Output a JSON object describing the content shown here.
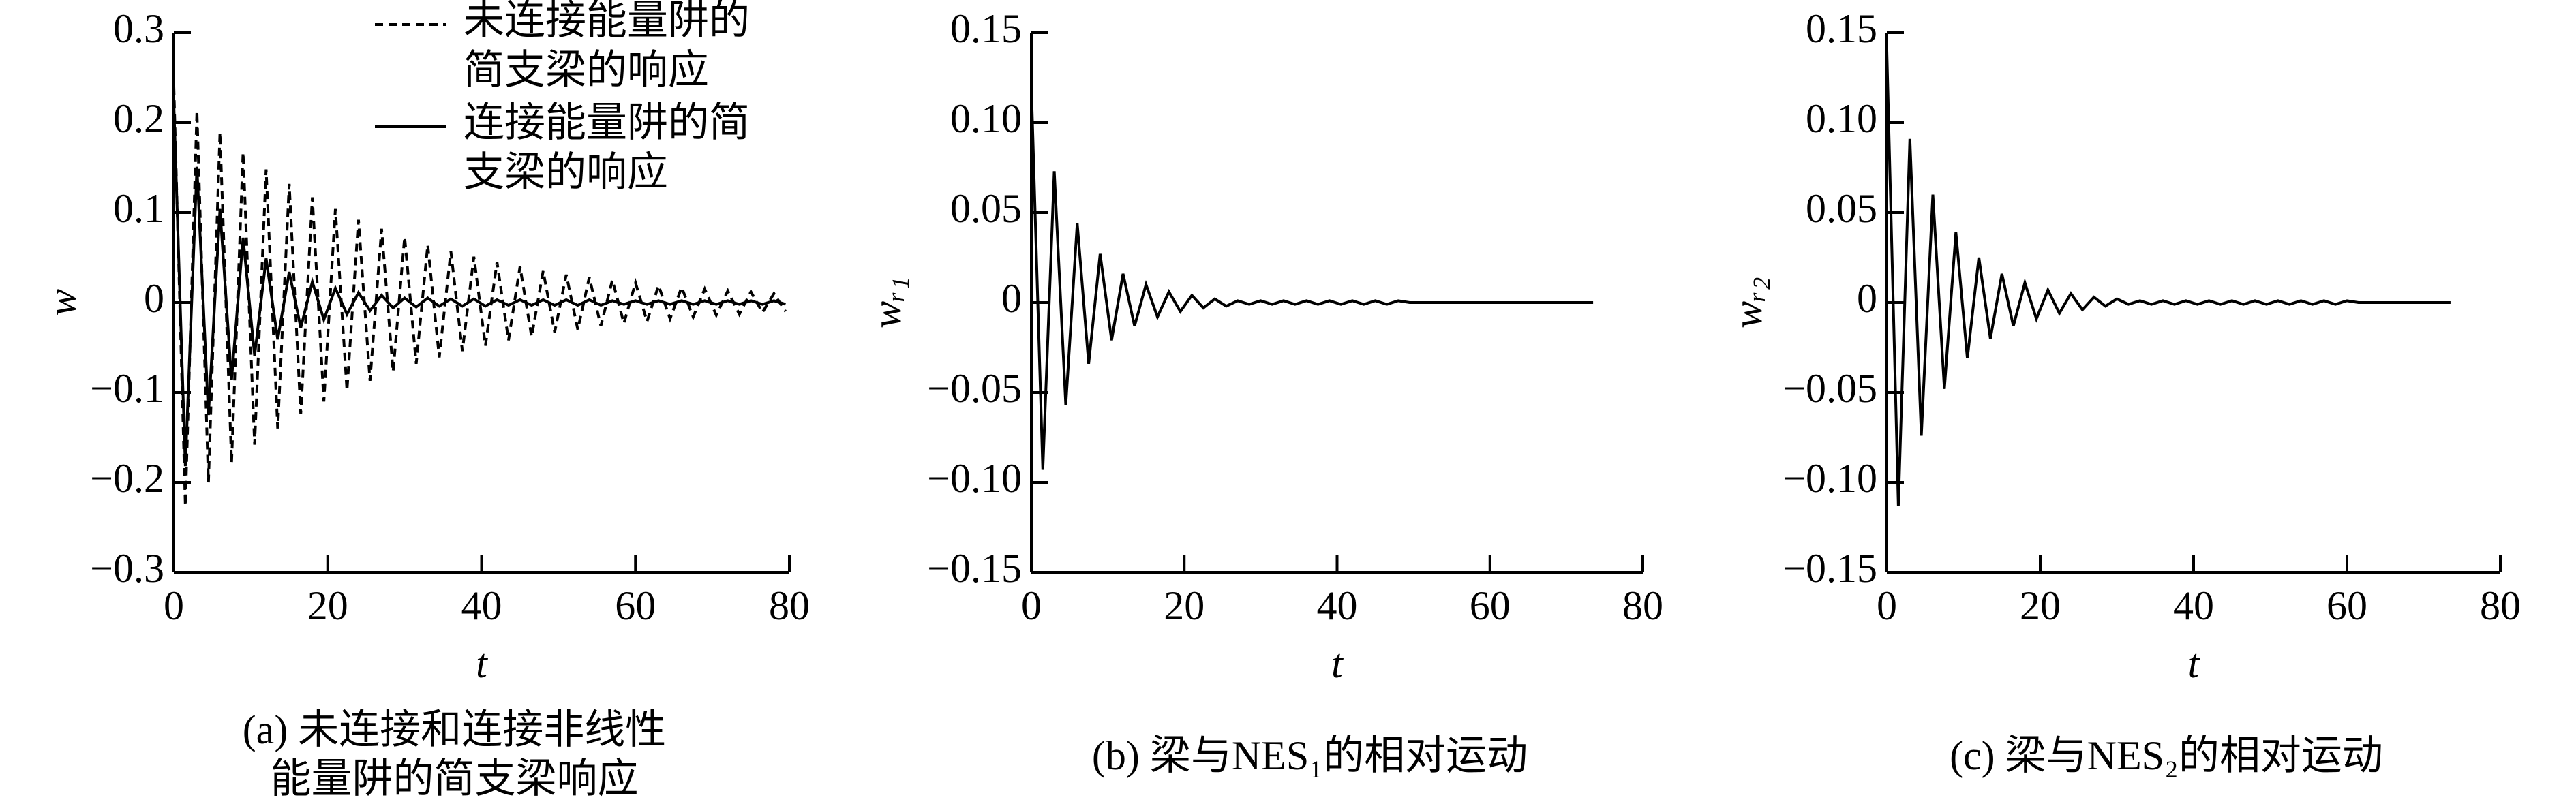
{
  "chart_data": [
    {
      "type": "line",
      "x_label": "t",
      "y_label": "w",
      "caption": [
        "(a) 未连接和连接非线性",
        "能量阱的简支梁响应"
      ],
      "legend": "upper right",
      "x": [
        0,
        1.5,
        3,
        4.5,
        6,
        7.5,
        9,
        10.5,
        12,
        13.5,
        15,
        16.5,
        18,
        19.5,
        21,
        22.5,
        24,
        25.5,
        27,
        28.5,
        30,
        31.5,
        33,
        34.5,
        36,
        37.5,
        39,
        40.5,
        42,
        43.5,
        45,
        46.5,
        48,
        49.5,
        51,
        52.5,
        54,
        55.5,
        57,
        58.5,
        60,
        61.5,
        63,
        64.5,
        66,
        67.5,
        69,
        70.5,
        72,
        73.5,
        75,
        76.5,
        78,
        79.5
      ],
      "series": [
        {
          "name": "未连接能量阱的简支梁的响应",
          "color": "#000000",
          "line_style": "dashed",
          "values": [
            0.24,
            -0.226,
            0.213,
            -0.2,
            0.189,
            -0.178,
            0.167,
            -0.158,
            0.148,
            -0.14,
            0.132,
            -0.124,
            0.117,
            -0.11,
            0.104,
            -0.098,
            0.092,
            -0.087,
            0.082,
            -0.077,
            0.073,
            -0.068,
            0.064,
            -0.061,
            0.057,
            -0.054,
            0.051,
            -0.048,
            0.045,
            -0.042,
            0.04,
            -0.038,
            0.035,
            -0.033,
            0.031,
            -0.03,
            0.028,
            -0.026,
            0.025,
            -0.023,
            0.022,
            -0.021,
            0.019,
            -0.018,
            0.017,
            -0.016,
            0.015,
            -0.014,
            0.013,
            -0.013,
            0.012,
            -0.011,
            0.01,
            -0.01
          ]
        },
        {
          "name": "连接能量阱的简支梁的响应",
          "color": "#000000",
          "line_style": "solid",
          "values": [
            0.22,
            -0.182,
            0.151,
            -0.125,
            0.104,
            -0.086,
            0.072,
            -0.059,
            0.049,
            -0.041,
            0.034,
            -0.028,
            0.023,
            -0.019,
            0.016,
            -0.013,
            0.011,
            -0.009,
            0.008,
            -0.006,
            0.005,
            -0.005,
            0.005,
            -0.004,
            0.004,
            -0.004,
            0.004,
            -0.004,
            0.003,
            -0.003,
            0.003,
            -0.003,
            0.003,
            -0.003,
            0.003,
            -0.003,
            0.003,
            -0.003,
            0.002,
            -0.002,
            0.002,
            -0.002,
            0.002,
            -0.002,
            0.002,
            -0.002,
            0.002,
            -0.002,
            0.002,
            -0.002,
            0.002,
            -0.002,
            0.002,
            -0.002
          ]
        }
      ],
      "xlim": [
        0,
        80
      ],
      "xticks": [
        0,
        20,
        40,
        60,
        80
      ],
      "ylim": [
        -0.3,
        0.3
      ],
      "yticks": [
        {
          "value": -0.3,
          "label": "−0.3"
        },
        {
          "value": -0.2,
          "label": "−0.2"
        },
        {
          "value": -0.1,
          "label": "−0.1"
        },
        0,
        0.1,
        0.2,
        0.3
      ]
    },
    {
      "type": "line",
      "x_label": "t",
      "y_label": "wᵣ₁",
      "caption": [
        "(b) 梁与NES₁的相对运动"
      ],
      "x": [
        0,
        1.5,
        3,
        4.5,
        6,
        7.5,
        9,
        10.5,
        12,
        13.5,
        15,
        16.5,
        18,
        19.5,
        21,
        22.5,
        24,
        25.5,
        27,
        28.5,
        30,
        31.5,
        33,
        34.5,
        36,
        37.5,
        39,
        40.5,
        42,
        43.5,
        45,
        46.5,
        48,
        49.5,
        51,
        52.5,
        54,
        55.5,
        57,
        58.5,
        60,
        61.5,
        63,
        64.5,
        66,
        67.5,
        69,
        70.5,
        72,
        73.5
      ],
      "series": [
        {
          "color": "#000000",
          "line_style": "solid",
          "values": [
            0.12,
            -0.093,
            0.073,
            -0.057,
            0.044,
            -0.034,
            0.027,
            -0.021,
            0.016,
            -0.013,
            0.01,
            -0.008,
            0.006,
            -0.005,
            0.004,
            -0.003,
            0.002,
            -0.002,
            0.001,
            -0.001,
            0.001,
            -0.001,
            0.001,
            -0.001,
            0.001,
            -0.001,
            0.001,
            -0.001,
            0.001,
            -0.001,
            0.001,
            -0.001,
            0.001,
            0,
            0,
            0,
            0,
            0,
            0,
            0,
            0,
            0,
            0,
            0,
            0,
            0,
            0,
            0,
            0,
            0
          ]
        }
      ],
      "xlim": [
        0,
        80
      ],
      "xticks": [
        0,
        20,
        40,
        60,
        80
      ],
      "ylim": [
        -0.15,
        0.15
      ],
      "yticks": [
        {
          "value": -0.15,
          "label": "−0.15"
        },
        {
          "value": -0.1,
          "label": "−0.10"
        },
        {
          "value": -0.05,
          "label": "−0.05"
        },
        0,
        0.05,
        {
          "value": 0.1,
          "label": "0.10"
        },
        0.15
      ]
    },
    {
      "type": "line",
      "x_label": "t",
      "y_label": "wᵣ₂",
      "caption": [
        "(c) 梁与NES₂的相对运动"
      ],
      "x": [
        0,
        1.5,
        3,
        4.5,
        6,
        7.5,
        9,
        10.5,
        12,
        13.5,
        15,
        16.5,
        18,
        19.5,
        21,
        22.5,
        24,
        25.5,
        27,
        28.5,
        30,
        31.5,
        33,
        34.5,
        36,
        37.5,
        39,
        40.5,
        42,
        43.5,
        45,
        46.5,
        48,
        49.5,
        51,
        52.5,
        54,
        55.5,
        57,
        58.5,
        60,
        61.5,
        63,
        64.5,
        66,
        67.5,
        69,
        70.5,
        72,
        73.5
      ],
      "series": [
        {
          "color": "#000000",
          "line_style": "solid",
          "values": [
            0.14,
            -0.113,
            0.091,
            -0.074,
            0.06,
            -0.048,
            0.039,
            -0.031,
            0.025,
            -0.02,
            0.016,
            -0.013,
            0.011,
            -0.009,
            0.007,
            -0.006,
            0.005,
            -0.004,
            0.003,
            -0.002,
            0.002,
            -0.001,
            0.001,
            -0.001,
            0.001,
            -0.001,
            0.001,
            -0.001,
            0.001,
            -0.001,
            0.001,
            -0.001,
            0.001,
            -0.001,
            0.001,
            -0.001,
            0.001,
            -0.001,
            0.001,
            -0.001,
            0.001,
            0,
            0,
            0,
            0,
            0,
            0,
            0,
            0,
            0
          ]
        }
      ],
      "xlim": [
        0,
        80
      ],
      "xticks": [
        0,
        20,
        40,
        60,
        80
      ],
      "ylim": [
        -0.15,
        0.15
      ],
      "yticks": [
        {
          "value": -0.15,
          "label": "−0.15"
        },
        {
          "value": -0.1,
          "label": "−0.10"
        },
        {
          "value": -0.05,
          "label": "−0.05"
        },
        0,
        0.05,
        {
          "value": 0.1,
          "label": "0.10"
        },
        0.15
      ]
    }
  ]
}
